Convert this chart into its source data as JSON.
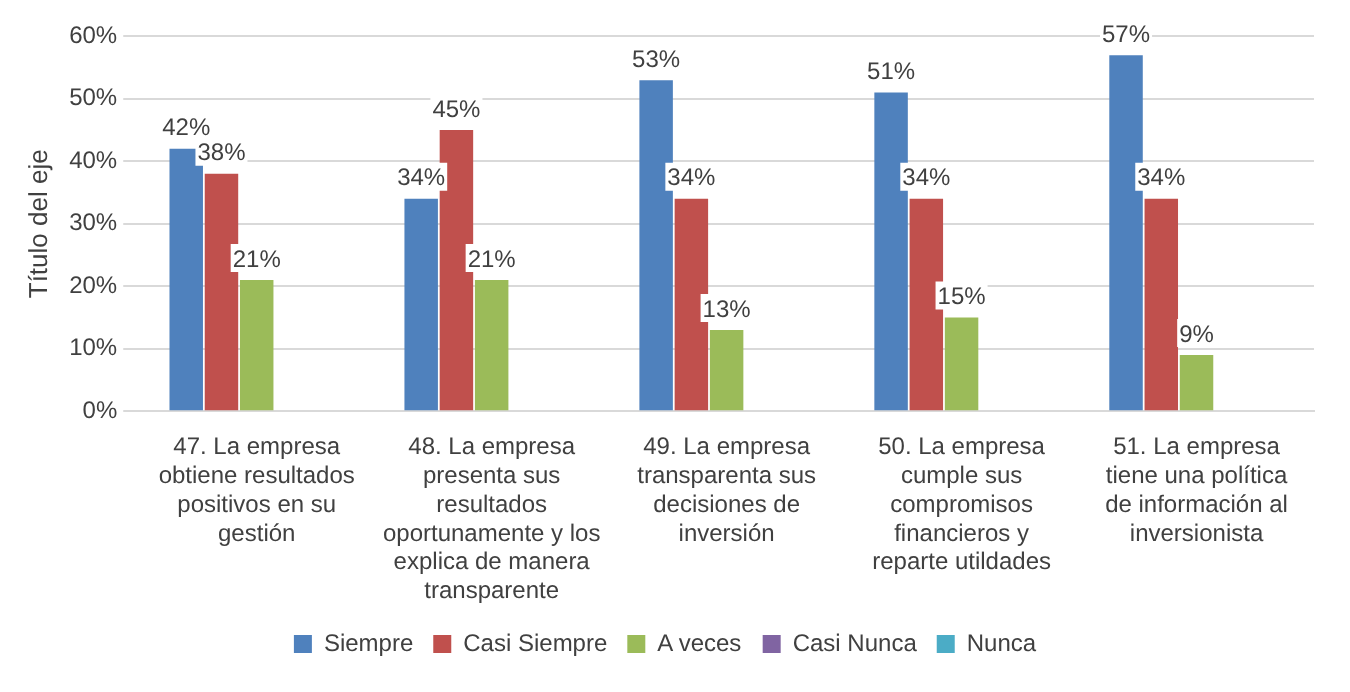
{
  "chart_data": {
    "type": "bar",
    "ylabel": "Título del eje",
    "categories": [
      "47. La empresa obtiene resultados positivos en su gestión",
      "48. La empresa presenta sus resultados oportunamente y los explica de manera transparente",
      "49. La empresa transparenta sus decisiones de inversión",
      "50. La empresa cumple sus compromisos financieros y reparte utildades",
      "51. La empresa tiene una política de información al inversionista"
    ],
    "series": [
      {
        "name": "Siempre",
        "color": "#4f81bd",
        "values": [
          42,
          34,
          53,
          51,
          57
        ],
        "value_labels": [
          "42%",
          "34%",
          "53%",
          "51%",
          "57%"
        ]
      },
      {
        "name": "Casi Siempre",
        "color": "#c0504d",
        "values": [
          38,
          45,
          34,
          34,
          34
        ],
        "value_labels": [
          "38%",
          "45%",
          "34%",
          "34%",
          "34%"
        ]
      },
      {
        "name": "A veces",
        "color": "#9bbb59",
        "values": [
          21,
          21,
          13,
          15,
          9
        ],
        "value_labels": [
          "21%",
          "21%",
          "13%",
          "15%",
          "9%"
        ]
      },
      {
        "name": "Casi Nunca",
        "color": "#8064a2",
        "values": [
          0,
          0,
          0,
          0,
          0
        ],
        "value_labels": [
          null,
          null,
          null,
          null,
          null
        ]
      },
      {
        "name": "Nunca",
        "color": "#4bacc6",
        "values": [
          0,
          0,
          0,
          0,
          0
        ],
        "value_labels": [
          null,
          null,
          null,
          null,
          null
        ]
      }
    ],
    "ylim": [
      0,
      60
    ],
    "yticks": [
      {
        "value": 0,
        "label": "0%"
      },
      {
        "value": 10,
        "label": "10%"
      },
      {
        "value": 20,
        "label": "20%"
      },
      {
        "value": 30,
        "label": "30%"
      },
      {
        "value": 40,
        "label": "40%"
      },
      {
        "value": 50,
        "label": "50%"
      },
      {
        "value": 60,
        "label": "60%"
      }
    ],
    "grid": "y",
    "legend": "bottom"
  }
}
